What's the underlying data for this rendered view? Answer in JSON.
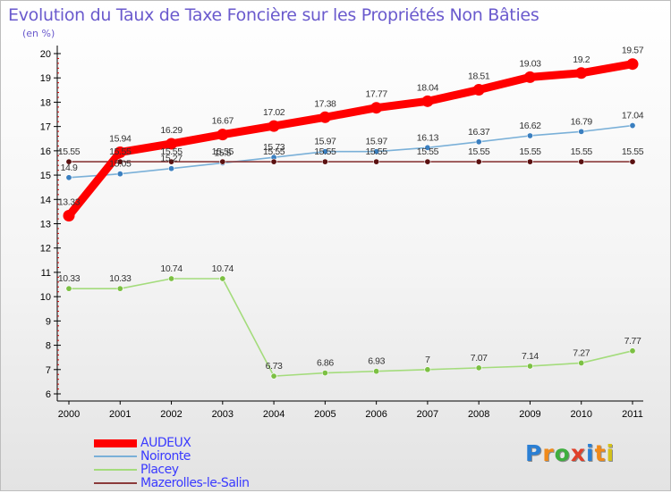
{
  "header": {
    "title": "Evolution du Taux de Taxe Foncière sur les Propriétés Non Bâties",
    "subtitle": "(en %)"
  },
  "chart_data": {
    "type": "line",
    "title": "Evolution du Taux de Taxe Foncière sur les Propriétés Non Bâties",
    "ylabel": "(en %)",
    "xlabel": "",
    "ylim": [
      6,
      20
    ],
    "yticks": [
      "6",
      "7",
      "8",
      "9",
      "10",
      "11",
      "12",
      "13",
      "14",
      "15",
      "16",
      "17",
      "18",
      "19",
      "20"
    ],
    "categories": [
      "2000",
      "2001",
      "2002",
      "2003",
      "2004",
      "2005",
      "2006",
      "2007",
      "2008",
      "2009",
      "2010",
      "2011"
    ],
    "grid": false,
    "legend_position": "bottom-left",
    "series": [
      {
        "name": "AUDEUX",
        "color": "#ff0000",
        "marker_color": "#ff0000",
        "values": [
          13.33,
          15.94,
          16.29,
          16.67,
          17.02,
          17.38,
          17.77,
          18.04,
          18.51,
          19.03,
          19.2,
          19.57
        ],
        "labels": [
          "13.33",
          "15.94",
          "16.29",
          "16.67",
          "17.02",
          "17.38",
          "17.77",
          "18.04",
          "18.51",
          "19.03",
          "19.2",
          "19.57"
        ]
      },
      {
        "name": "Noironte",
        "color": "#7ab0d8",
        "marker_color": "#3a7fc0",
        "values": [
          14.9,
          15.05,
          15.27,
          15.5,
          15.73,
          15.97,
          15.97,
          16.13,
          16.37,
          16.62,
          16.79,
          17.04
        ],
        "labels": [
          "14.9",
          "15.05",
          "15.27",
          "15.5",
          "15.73",
          "15.97",
          "15.97",
          "16.13",
          "16.37",
          "16.62",
          "16.79",
          "17.04"
        ]
      },
      {
        "name": "Placey",
        "color": "#a4dc7c",
        "marker_color": "#7cc043",
        "values": [
          10.33,
          10.33,
          10.74,
          10.74,
          6.73,
          6.86,
          6.93,
          7.0,
          7.07,
          7.14,
          7.27,
          7.77
        ],
        "labels": [
          "10.33",
          "10.33",
          "10.74",
          "10.74",
          "6.73",
          "6.86",
          "6.93",
          "7",
          "7.07",
          "7.14",
          "7.27",
          "7.77"
        ]
      },
      {
        "name": "Mazerolles-le-Salin",
        "color": "#8b3a3a",
        "marker_color": "#5a1010",
        "values": [
          15.55,
          15.55,
          15.55,
          15.55,
          15.55,
          15.55,
          15.55,
          15.55,
          15.55,
          15.55,
          15.55,
          15.55
        ],
        "labels": [
          "15.55",
          "15.55",
          "15.55",
          "15.55",
          "15.55",
          "15.55",
          "15.55",
          "15.55",
          "15.55",
          "15.55",
          "15.55",
          "15.55"
        ]
      }
    ]
  },
  "logo": {
    "text": "Proxiti",
    "letters": [
      "P",
      "r",
      "o",
      "x",
      "i",
      "t",
      "i"
    ],
    "colors": [
      "#2a7fd4",
      "#f08a1a",
      "#3fae3f",
      "#e0402a",
      "#2a7fd4",
      "#f08a1a",
      "#d4c21a"
    ]
  }
}
